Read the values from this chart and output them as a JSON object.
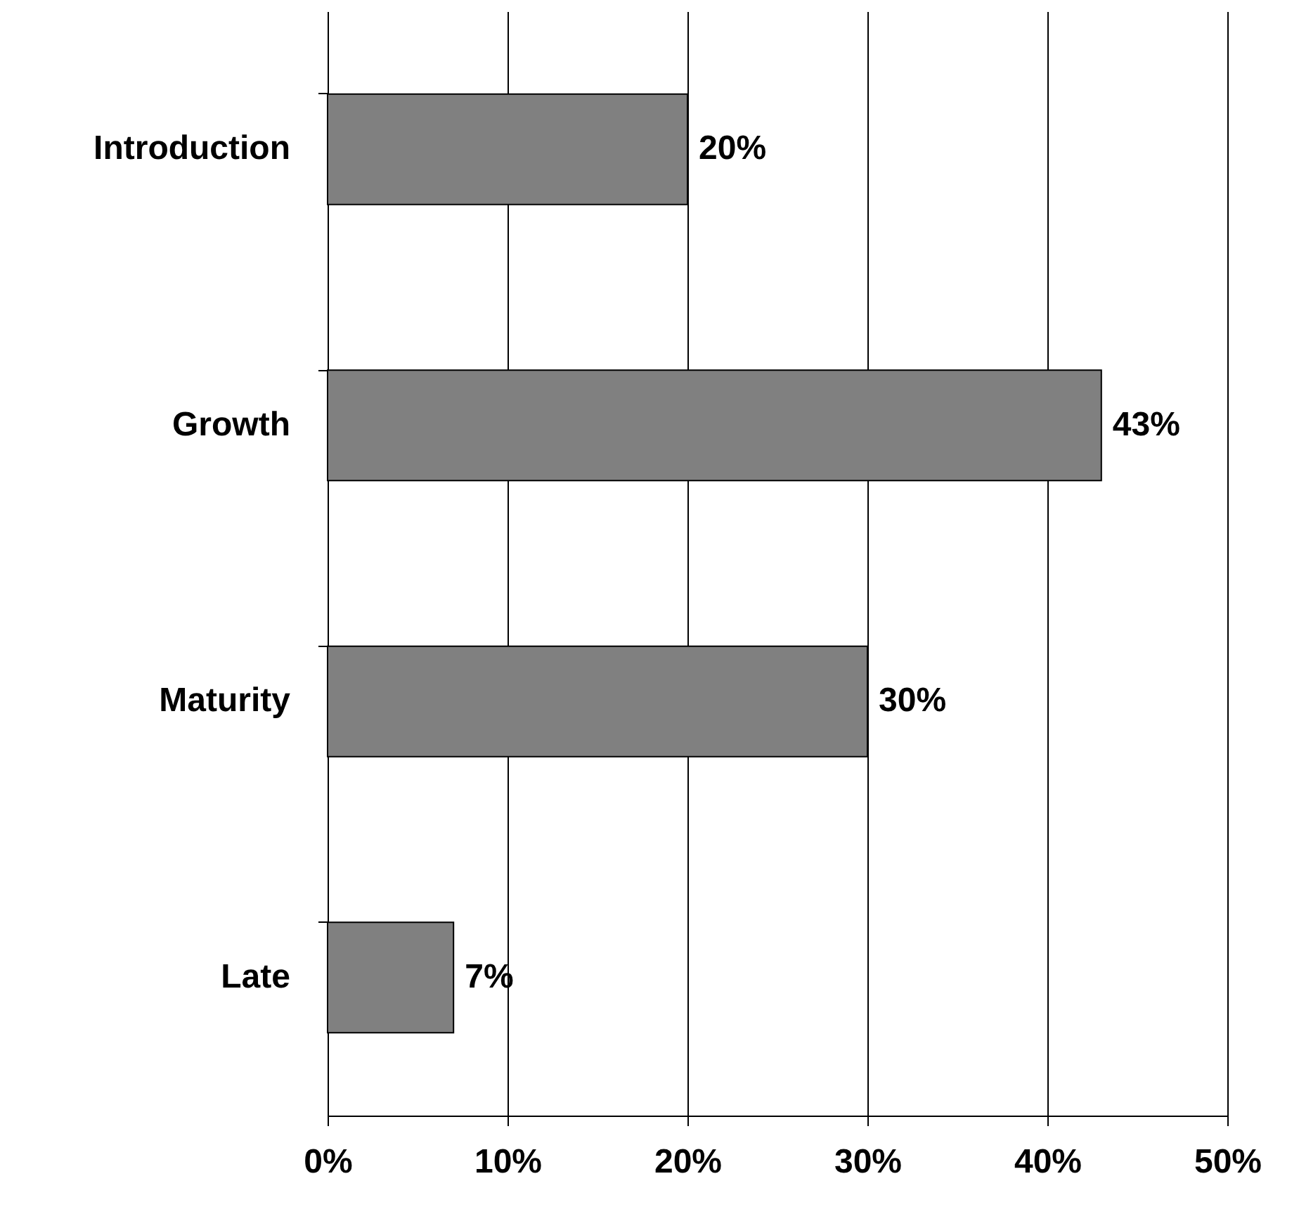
{
  "chart_data": {
    "type": "bar",
    "orientation": "horizontal",
    "categories": [
      "Introduction",
      "Growth",
      "Maturity",
      "Late"
    ],
    "values": [
      20,
      43,
      30,
      7
    ],
    "value_labels": [
      "20%",
      "43%",
      "30%",
      "7%"
    ],
    "color": "#808080",
    "xlim": [
      0,
      50
    ],
    "xticks": [
      {
        "value": 0,
        "label": "0%"
      },
      {
        "value": 10,
        "label": "10%"
      },
      {
        "value": 20,
        "label": "20%"
      },
      {
        "value": 30,
        "label": "30%"
      },
      {
        "value": 40,
        "label": "40%"
      },
      {
        "value": 50,
        "label": "50%"
      }
    ],
    "grid": "x"
  }
}
